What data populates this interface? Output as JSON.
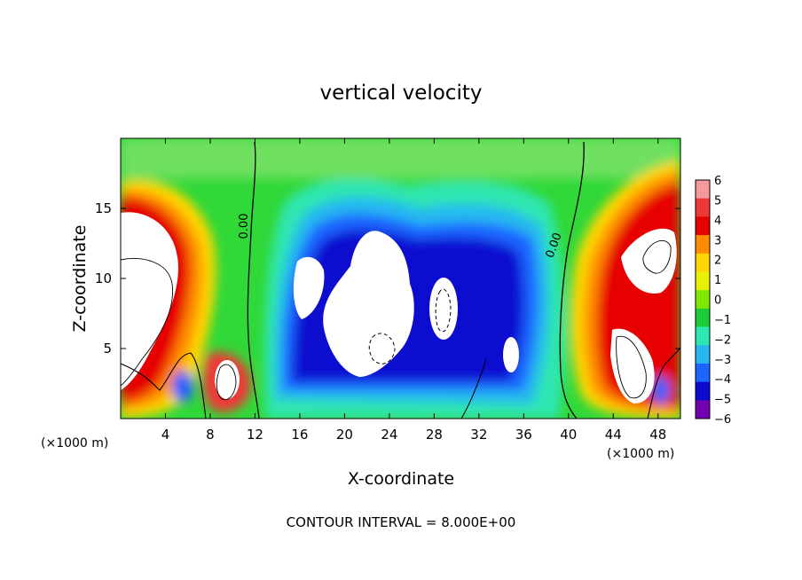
{
  "chart_data": {
    "type": "heatmap",
    "title": "vertical velocity",
    "xlabel": "X-coordinate",
    "ylabel": "Z-coordinate",
    "x_unit_left": "(×1000 m)",
    "x_unit_right": "(×1000 m)",
    "xlim": [
      0,
      50
    ],
    "ylim": [
      0,
      20
    ],
    "x_ticks": [
      4,
      8,
      12,
      16,
      20,
      24,
      28,
      32,
      36,
      40,
      44,
      48
    ],
    "y_ticks": [
      5,
      10,
      15
    ],
    "colorbar": {
      "min": -6,
      "max": 6,
      "labels": [
        "6",
        "5",
        "4",
        "3",
        "2",
        "1",
        "0",
        "−1",
        "−2",
        "−3",
        "−4",
        "−5",
        "−6"
      ],
      "colors": [
        "#f59a9a",
        "#f03838",
        "#e60000",
        "#ff8c00",
        "#ffd700",
        "#e8f000",
        "#7fe800",
        "#1ccc3a",
        "#2ee6b0",
        "#28b8f0",
        "#1e64ff",
        "#0a0ad0",
        "#7000b0"
      ]
    },
    "contour_labels": [
      "0.00",
      "0.00"
    ],
    "footnote": "CONTOUR INTERVAL = 8.000E+00"
  }
}
